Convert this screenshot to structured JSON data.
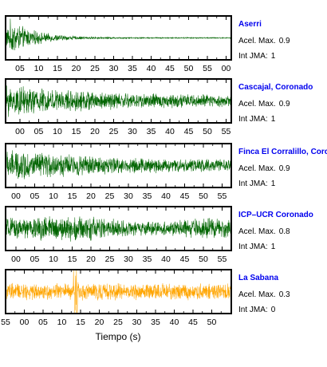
{
  "chart_data": {
    "type": "line",
    "xlabel": "Tiempo (s)",
    "grid": false,
    "panels": [
      {
        "station": "Aserri",
        "accel_label": "Acel. Max.",
        "accel_value": "0.9",
        "jma_label": "Int JMA:",
        "jma_value": "1",
        "color": "#006400",
        "envelope": "decay",
        "amplitude": 0.9,
        "tick_labels": [
          "05",
          "10",
          "15",
          "20",
          "25",
          "30",
          "35",
          "40",
          "45",
          "50",
          "55",
          "00",
          "05"
        ]
      },
      {
        "station": "Cascajal, Coronado",
        "accel_label": "Acel. Max.",
        "accel_value": "0.9",
        "jma_label": "Int JMA:",
        "jma_value": "1",
        "color": "#006400",
        "envelope": "slow-decay",
        "amplitude": 0.9,
        "tick_labels": [
          "00",
          "05",
          "10",
          "15",
          "20",
          "25",
          "30",
          "35",
          "40",
          "45",
          "50",
          "55"
        ]
      },
      {
        "station": "Finca El Corralillo, Corc",
        "accel_label": "Acel. Max.",
        "accel_value": "0.9",
        "jma_label": "Int JMA:",
        "jma_value": "1",
        "color": "#006400",
        "envelope": "slow-decay",
        "amplitude": 0.9,
        "tick_labels": [
          "00",
          "05",
          "10",
          "15",
          "20",
          "25",
          "30",
          "35",
          "40",
          "45",
          "50",
          "55"
        ]
      },
      {
        "station": "ICP–UCR Coronado",
        "accel_label": "Acel. Max.",
        "accel_value": "0.8",
        "jma_label": "Int JMA:",
        "jma_value": "1",
        "color": "#006400",
        "envelope": "sustained",
        "amplitude": 0.8,
        "tick_labels": [
          "00",
          "05",
          "10",
          "15",
          "20",
          "25",
          "30",
          "35",
          "40",
          "45",
          "50",
          "55"
        ]
      },
      {
        "station": "La Sabana",
        "accel_label": "Acel. Max.",
        "accel_value": "0.3",
        "jma_label": "Int JMA:",
        "jma_value": "0",
        "color": "#ffa500",
        "envelope": "spike",
        "amplitude": 0.3,
        "tick_labels": [
          "55",
          "00",
          "05",
          "10",
          "15",
          "20",
          "25",
          "30",
          "35",
          "40",
          "45",
          "50"
        ]
      }
    ]
  }
}
